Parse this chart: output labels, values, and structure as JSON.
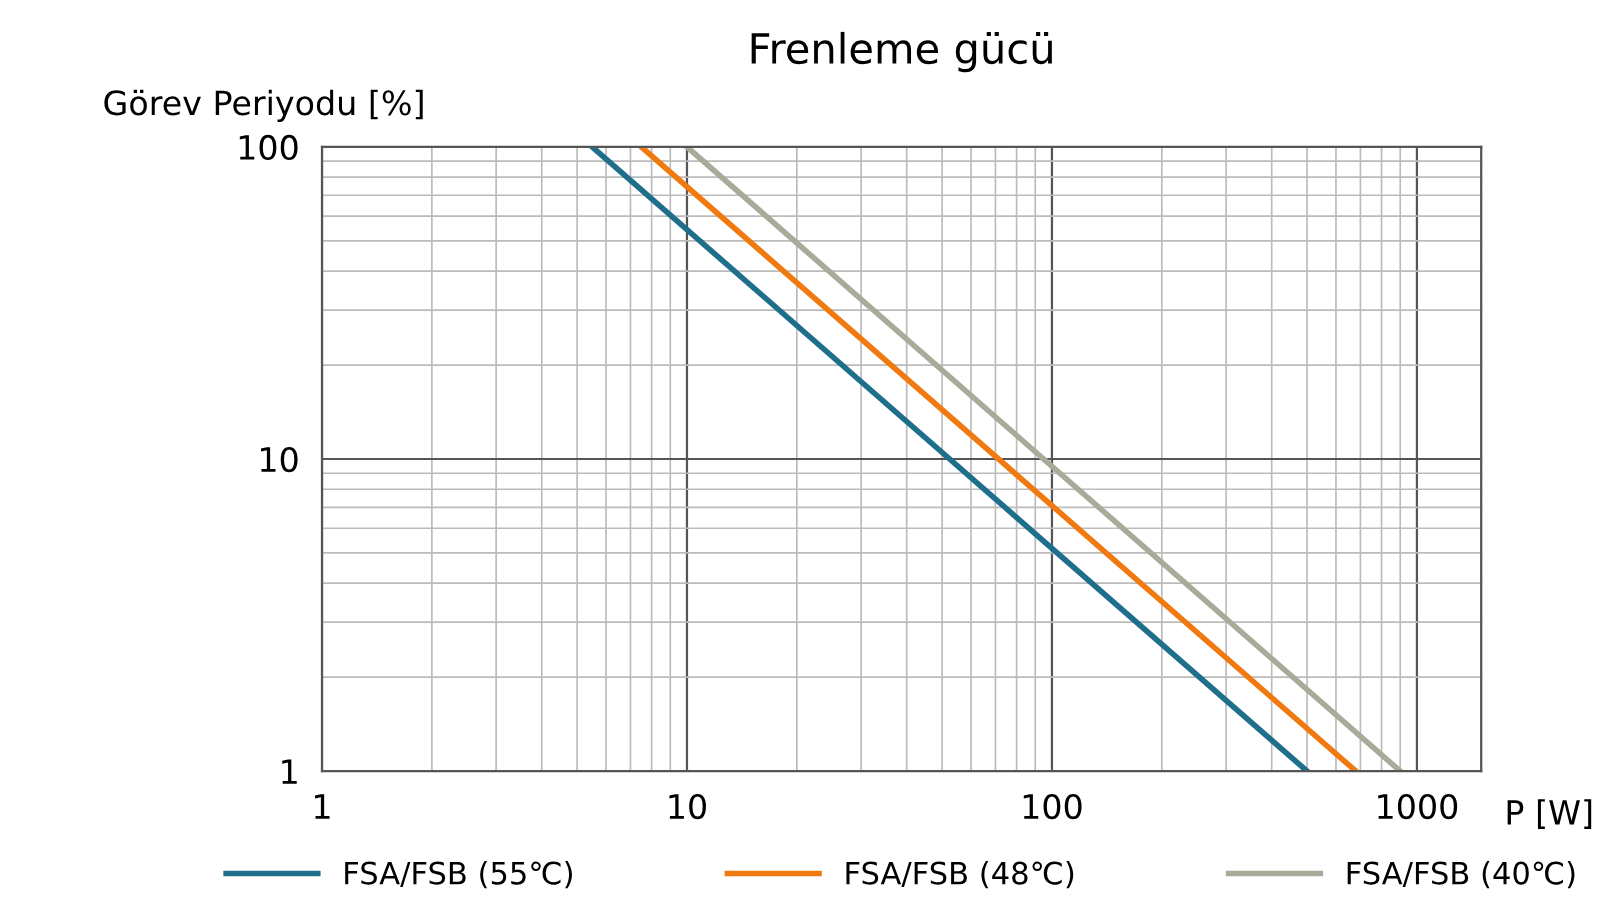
{
  "chart_data": {
    "type": "line",
    "title": "Frenleme gücü",
    "xlabel": "P [W]",
    "ylabel": "Görev Periyodu [%]",
    "log": "xy",
    "xlim": [
      1,
      1500
    ],
    "ylim": [
      1,
      100
    ],
    "xticks": [
      1,
      10,
      100,
      1000
    ],
    "yticks": [
      1,
      10,
      100
    ],
    "grid": true,
    "legend": "bottom",
    "marker": "none",
    "line_style": "solid",
    "series": [
      {
        "name": "FSA/FSB (55℃)",
        "color": "#1f6e8c",
        "x": [
          5.5,
          500
        ],
        "values": [
          100,
          1
        ]
      },
      {
        "name": "FSA/FSB (48℃)",
        "color": "#f07a10",
        "x": [
          7.5,
          680
        ],
        "values": [
          100,
          1
        ]
      },
      {
        "name": "FSA/FSB (40℃)",
        "color": "#a9aa9a",
        "x": [
          10,
          900
        ],
        "values": [
          100,
          1
        ]
      }
    ]
  }
}
